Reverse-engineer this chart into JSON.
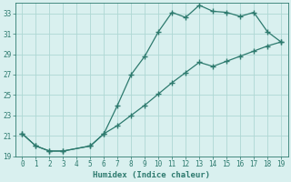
{
  "line1_x": [
    0,
    1,
    2,
    3,
    5,
    6,
    7,
    8,
    9,
    10,
    11,
    12,
    13,
    14,
    15,
    16,
    17,
    18,
    19
  ],
  "line1_y": [
    21.2,
    20.0,
    19.5,
    19.5,
    20.0,
    21.2,
    24.0,
    27.0,
    28.8,
    31.2,
    33.1,
    32.6,
    33.8,
    33.2,
    33.1,
    32.7,
    33.1,
    31.2,
    30.2
  ],
  "line2_x": [
    0,
    1,
    2,
    3,
    5,
    6,
    7,
    8,
    9,
    10,
    11,
    12,
    13,
    14,
    15,
    16,
    17,
    18,
    19
  ],
  "line2_y": [
    21.2,
    20.0,
    19.5,
    19.5,
    20.0,
    21.2,
    22.0,
    23.0,
    24.0,
    25.1,
    26.2,
    27.2,
    28.2,
    27.8,
    28.3,
    28.8,
    29.3,
    29.8,
    30.2
  ],
  "line_color": "#2d7a6e",
  "bg_color": "#d9f0ef",
  "grid_color": "#afd8d4",
  "xlabel": "Humidex (Indice chaleur)",
  "ylim": [
    19,
    34
  ],
  "xlim": [
    -0.5,
    19.5
  ],
  "yticks": [
    19,
    21,
    23,
    25,
    27,
    29,
    31,
    33
  ],
  "xticks": [
    0,
    1,
    2,
    3,
    4,
    5,
    6,
    7,
    8,
    9,
    10,
    11,
    12,
    13,
    14,
    15,
    16,
    17,
    18,
    19
  ],
  "xlabel_fontsize": 6.5,
  "tick_labelsize": 5.5
}
